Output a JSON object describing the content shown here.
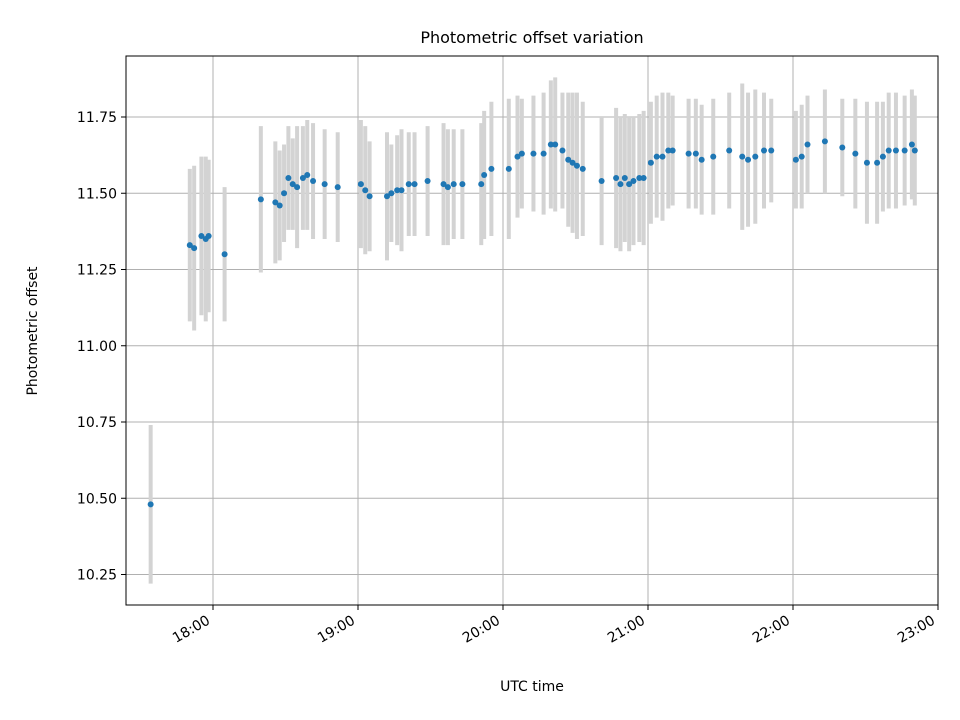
{
  "chart_data": {
    "type": "scatter",
    "title": "Photometric offset variation",
    "xlabel": "UTC time",
    "ylabel": "Photometric offset",
    "x_unit": "hours UTC",
    "xlim": [
      17.4,
      23.0
    ],
    "ylim": [
      10.15,
      11.95
    ],
    "xticks": [
      18,
      19,
      20,
      21,
      22,
      23
    ],
    "xtick_labels": [
      "18:00",
      "19:00",
      "20:00",
      "21:00",
      "22:00",
      "23:00"
    ],
    "yticks": [
      10.25,
      10.5,
      10.75,
      11.0,
      11.25,
      11.5,
      11.75
    ],
    "ytick_labels": [
      "10.25",
      "10.50",
      "10.75",
      "11.00",
      "11.25",
      "11.50",
      "11.75"
    ],
    "grid": true,
    "point_color": "#1f77b4",
    "errorbar_color": "#d3d3d3",
    "series": [
      {
        "x": [
          17.57,
          17.84,
          17.87,
          17.92,
          17.95,
          17.97,
          18.08,
          18.33,
          18.43,
          18.46,
          18.49,
          18.52,
          18.55,
          18.58,
          18.62,
          18.65,
          18.69,
          18.77,
          18.86,
          19.02,
          19.05,
          19.08,
          19.2,
          19.23,
          19.27,
          19.3,
          19.35,
          19.39,
          19.48,
          19.59,
          19.62,
          19.66,
          19.72,
          19.85,
          19.87,
          19.92,
          20.04,
          20.1,
          20.13,
          20.21,
          20.28,
          20.33,
          20.36,
          20.41,
          20.45,
          20.48,
          20.51,
          20.55,
          20.68,
          20.78,
          20.81,
          20.84,
          20.87,
          20.9,
          20.94,
          20.97,
          21.02,
          21.06,
          21.1,
          21.14,
          21.17,
          21.28,
          21.33,
          21.37,
          21.45,
          21.56,
          21.65,
          21.69,
          21.74,
          21.8,
          21.85,
          22.02,
          22.06,
          22.1,
          22.22,
          22.34,
          22.43,
          22.51,
          22.58,
          22.62,
          22.66,
          22.71,
          22.77,
          22.82,
          22.84
        ],
        "y": [
          10.48,
          11.33,
          11.32,
          11.36,
          11.35,
          11.36,
          11.3,
          11.48,
          11.47,
          11.46,
          11.5,
          11.55,
          11.53,
          11.52,
          11.55,
          11.56,
          11.54,
          11.53,
          11.52,
          11.53,
          11.51,
          11.49,
          11.49,
          11.5,
          11.51,
          11.51,
          11.53,
          11.53,
          11.54,
          11.53,
          11.52,
          11.53,
          11.53,
          11.53,
          11.56,
          11.58,
          11.58,
          11.62,
          11.63,
          11.63,
          11.63,
          11.66,
          11.66,
          11.64,
          11.61,
          11.6,
          11.59,
          11.58,
          11.54,
          11.55,
          11.53,
          11.55,
          11.53,
          11.54,
          11.55,
          11.55,
          11.6,
          11.62,
          11.62,
          11.64,
          11.64,
          11.63,
          11.63,
          11.61,
          11.62,
          11.64,
          11.62,
          11.61,
          11.62,
          11.64,
          11.64,
          11.61,
          11.62,
          11.66,
          11.67,
          11.65,
          11.63,
          11.6,
          11.6,
          11.62,
          11.64,
          11.64,
          11.64,
          11.66,
          11.64
        ],
        "yerr": [
          0.26,
          0.25,
          0.27,
          0.26,
          0.27,
          0.25,
          0.22,
          0.24,
          0.2,
          0.18,
          0.16,
          0.17,
          0.15,
          0.2,
          0.17,
          0.18,
          0.19,
          0.18,
          0.18,
          0.21,
          0.21,
          0.18,
          0.21,
          0.16,
          0.18,
          0.2,
          0.17,
          0.17,
          0.18,
          0.2,
          0.19,
          0.18,
          0.18,
          0.2,
          0.21,
          0.22,
          0.23,
          0.2,
          0.18,
          0.19,
          0.2,
          0.21,
          0.22,
          0.19,
          0.22,
          0.23,
          0.24,
          0.22,
          0.21,
          0.23,
          0.22,
          0.21,
          0.22,
          0.21,
          0.21,
          0.22,
          0.2,
          0.2,
          0.21,
          0.19,
          0.18,
          0.18,
          0.18,
          0.18,
          0.19,
          0.19,
          0.24,
          0.22,
          0.22,
          0.19,
          0.17,
          0.16,
          0.17,
          0.16,
          0.17,
          0.16,
          0.18,
          0.2,
          0.2,
          0.18,
          0.19,
          0.19,
          0.18,
          0.18,
          0.18
        ]
      }
    ]
  }
}
